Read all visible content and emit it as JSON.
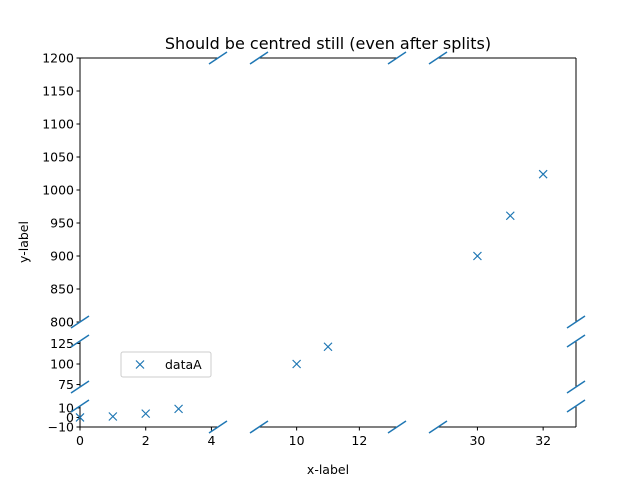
{
  "chart_data": {
    "type": "scatter",
    "title": "Should be centred still (even after splits)",
    "xlabel": "x-label",
    "ylabel": "y-label",
    "marker": "x",
    "color": "#1f77b4",
    "grid": false,
    "legend_position": "lower-left",
    "x_segments": [
      {
        "range": [
          0,
          4.2
        ],
        "ticks": [
          0,
          2,
          4
        ]
      },
      {
        "range": [
          8.8,
          13.2
        ],
        "ticks": [
          10,
          12
        ]
      },
      {
        "range": [
          28.8,
          33
        ],
        "ticks": [
          30,
          32
        ]
      }
    ],
    "y_segments": [
      {
        "range": [
          -10,
          12
        ],
        "ticks": [
          -10,
          0,
          10
        ]
      },
      {
        "range": [
          72,
          128
        ],
        "ticks": [
          75,
          100,
          125
        ]
      },
      {
        "range": [
          800,
          1200
        ],
        "ticks": [
          800,
          850,
          900,
          950,
          1000,
          1050,
          1100,
          1150,
          1200
        ]
      }
    ],
    "series": [
      {
        "name": "dataA",
        "x": [
          0,
          1,
          2,
          3,
          10,
          11,
          30,
          31,
          32
        ],
        "y": [
          0,
          1,
          4,
          9,
          100,
          121,
          900,
          961,
          1024
        ]
      }
    ]
  }
}
